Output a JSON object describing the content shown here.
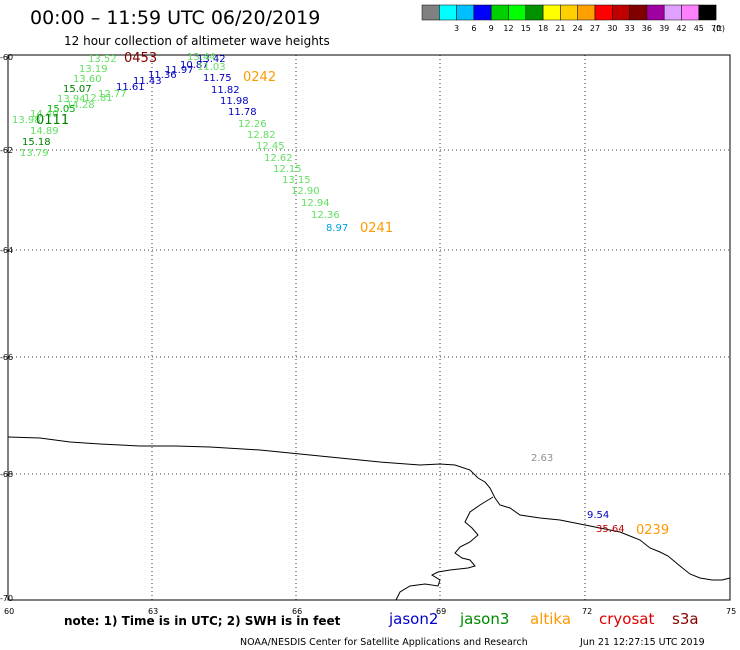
{
  "header": {
    "title": "00:00 – 11:59 UTC 06/20/2019",
    "subtitle": "12 hour collection of altimeter wave heights"
  },
  "legend": {
    "unit": "(ft)",
    "swatches": [
      {
        "color": "#808080",
        "label": ""
      },
      {
        "color": "#00ffff",
        "label": "3"
      },
      {
        "color": "#00bfff",
        "label": "6"
      },
      {
        "color": "#0000ff",
        "label": "9"
      },
      {
        "color": "#00d000",
        "label": "12"
      },
      {
        "color": "#00ff00",
        "label": "15"
      },
      {
        "color": "#009000",
        "label": "18"
      },
      {
        "color": "#ffff00",
        "label": "21"
      },
      {
        "color": "#ffd000",
        "label": "24"
      },
      {
        "color": "#ffa000",
        "label": "27"
      },
      {
        "color": "#ff0000",
        "label": "30"
      },
      {
        "color": "#c00000",
        "label": "33"
      },
      {
        "color": "#800000",
        "label": "36"
      },
      {
        "color": "#a000a0",
        "label": "39"
      },
      {
        "color": "#e0a0ff",
        "label": "42"
      },
      {
        "color": "#ff80ff",
        "label": "45"
      },
      {
        "color": "#000000",
        "label": "70"
      }
    ]
  },
  "axes": {
    "lat_labels": [
      "-60",
      "-62",
      "-64",
      "-66",
      "-68",
      "-70"
    ],
    "lon_labels": [
      "60",
      "63",
      "66",
      "69",
      "72",
      "75"
    ]
  },
  "observations": [
    {
      "v": "13.52",
      "c": "#60e060"
    },
    {
      "v": "13.19",
      "c": "#60e060"
    },
    {
      "v": "13.60",
      "c": "#60e060"
    },
    {
      "v": "15.07",
      "c": "#008000"
    },
    {
      "v": "13.94",
      "c": "#60e060"
    },
    {
      "v": "12.81",
      "c": "#60e060"
    },
    {
      "v": "12.77",
      "c": "#60e060"
    },
    {
      "v": "14.28",
      "c": "#60e060"
    },
    {
      "v": "15.05",
      "c": "#00b000"
    },
    {
      "v": "14.40",
      "c": "#60e060"
    },
    {
      "v": "13.98",
      "c": "#60e060"
    },
    {
      "v": "14.89",
      "c": "#60e060"
    },
    {
      "v": "15.18",
      "c": "#008000"
    },
    {
      "v": "13.79",
      "c": "#60e060"
    },
    {
      "v": "11.61",
      "c": "#0000c0"
    },
    {
      "v": "11.43",
      "c": "#0000c0"
    },
    {
      "v": "11.36",
      "c": "#0000c0"
    },
    {
      "v": "11.97",
      "c": "#0000c0"
    },
    {
      "v": "10.87",
      "c": "#0000c0"
    },
    {
      "v": "13.42",
      "c": "#0000c0"
    },
    {
      "v": "13.44",
      "c": "#60e060"
    },
    {
      "v": "11.03",
      "c": "#60e060"
    },
    {
      "v": "11.75",
      "c": "#0000c0"
    },
    {
      "v": "11.82",
      "c": "#0000c0"
    },
    {
      "v": "11.98",
      "c": "#0000c0"
    },
    {
      "v": "11.78",
      "c": "#0000c0"
    },
    {
      "v": "12.26",
      "c": "#60e060"
    },
    {
      "v": "12.82",
      "c": "#60e060"
    },
    {
      "v": "12.45",
      "c": "#60e060"
    },
    {
      "v": "12.62",
      "c": "#60e060"
    },
    {
      "v": "12.15",
      "c": "#60e060"
    },
    {
      "v": "13.15",
      "c": "#60e060"
    },
    {
      "v": "12.90",
      "c": "#60e060"
    },
    {
      "v": "12.94",
      "c": "#60e060"
    },
    {
      "v": "12.36",
      "c": "#60e060"
    },
    {
      "v": "8.97",
      "c": "#00a0e0"
    },
    {
      "v": "2.63",
      "c": "#909090"
    },
    {
      "v": "9.54",
      "c": "#0000c0"
    },
    {
      "v": "35.64",
      "c": "#c00000"
    }
  ],
  "pass_times": [
    {
      "t": "0453",
      "c": "#800000"
    },
    {
      "t": "0242",
      "c": "#ff9900"
    },
    {
      "t": "0111",
      "c": "#008000"
    },
    {
      "t": "0241",
      "c": "#ff9900"
    },
    {
      "t": "0239",
      "c": "#ff9900"
    }
  ],
  "footer": {
    "note": "note: 1) Time is in UTC; 2) SWH is in feet",
    "satellites": [
      {
        "name": "jason2",
        "color": "#0000cc"
      },
      {
        "name": "jason3",
        "color": "#008800"
      },
      {
        "name": "altika",
        "color": "#ff9900"
      },
      {
        "name": "cryosat",
        "color": "#dd0000"
      },
      {
        "name": "s3a",
        "color": "#880000"
      }
    ],
    "credit": "NOAA/NESDIS Center for Satellite Applications and Research",
    "timestamp": "Jun 21 12:27:15 UTC 2019"
  }
}
